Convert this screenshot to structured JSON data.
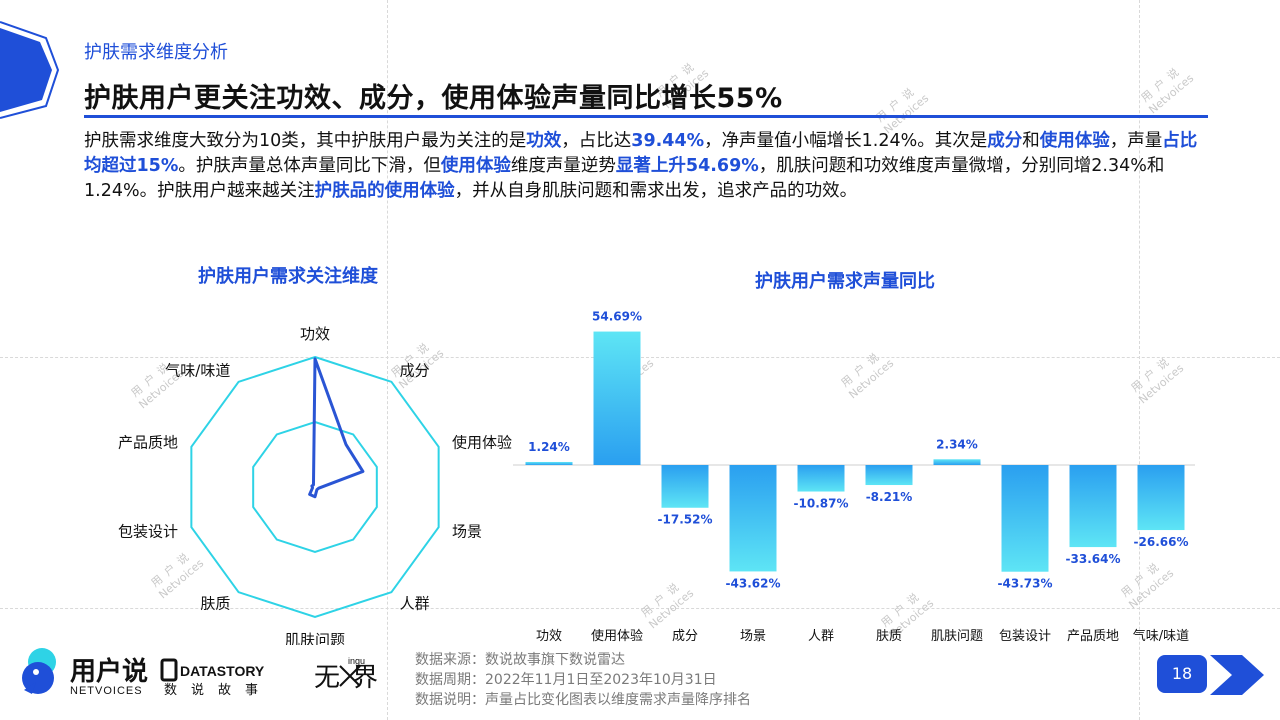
{
  "header": {
    "section": "护肤需求维度分析",
    "title": "护肤用户更关注功效、成分，使用体验声量同比增长55%"
  },
  "summary": {
    "p1": "护肤需求维度大致分为10类，其中护肤用户最为关注的是",
    "h1": "功效",
    "p2": "，占比达",
    "h2": "39.44%",
    "p3": "，净声量值小幅增长1.24%。其次是",
    "h3": "成分",
    "p4": "和",
    "h4": "使用体验",
    "p5": "，声量",
    "h5": "占比均超过15%",
    "p6": "。护肤声量总体声量同比下滑，但",
    "h6": "使用体验",
    "p7": "维度声量逆势",
    "h7": "显著上升54.69%",
    "p8": "，肌肤问题和功效维度声量微增，分别同增2.34%和1.24%。护肤用户越来越关注",
    "h8": "护肤品的使用体验",
    "p9": "，并从自身肌肤问题和需求出发，追求产品的功效。"
  },
  "colors": {
    "accent": "#1f4fd8",
    "cyan": "#2ed3e6",
    "bar_top": "#5ee5f5",
    "bar_bottom": "#2a9ff0",
    "radar_line": "#2a55d4"
  },
  "chart_data": [
    {
      "type": "radar",
      "title": "护肤用户需求关注维度",
      "axes": [
        "功效",
        "成分",
        "使用体验",
        "场景",
        "人群",
        "肌肤问题",
        "肤质",
        "包装设计",
        "产品质地",
        "气味/味道"
      ],
      "series": [
        {
          "values": [
            39.44,
            16.2,
            15.5,
            1.2,
            1.0,
            3.0,
            2.8,
            0.8,
            1.0,
            0.8
          ]
        }
      ],
      "range": [
        0,
        40
      ],
      "grid_rings": 2
    },
    {
      "type": "bar",
      "title": "护肤用户需求声量同比",
      "categories": [
        "功效",
        "使用体验",
        "成分",
        "场景",
        "人群",
        "肤质",
        "肌肤问题",
        "包装设计",
        "产品质地",
        "气味/味道"
      ],
      "values": [
        1.24,
        54.69,
        -17.52,
        -43.62,
        -10.87,
        -8.21,
        2.34,
        -43.73,
        -33.64,
        -26.66
      ],
      "labels": [
        "1.24%",
        "54.69%",
        "-17.52%",
        "-43.62%",
        "-10.87%",
        "-8.21%",
        "2.34%",
        "-43.73%",
        "-33.64%",
        "-26.66%"
      ],
      "ylim": [
        -55,
        60
      ],
      "grid": false
    }
  ],
  "footer": {
    "brand_cn": "用户说",
    "brand_en": "NETVOICES",
    "partner1_en": "DATASTORY",
    "partner1_cn": "数说故事",
    "partner2": "无界",
    "partner2_small": "ingu",
    "notes": [
      "数据来源：数说故事旗下数说雷达",
      "数据周期：2022年11月1日至2023年10月31日",
      "数据说明：声量占比变化图表以维度需求声量降序排名"
    ],
    "page": "18"
  },
  "watermark": {
    "line1": "用户说",
    "line2": "Netvoices"
  }
}
